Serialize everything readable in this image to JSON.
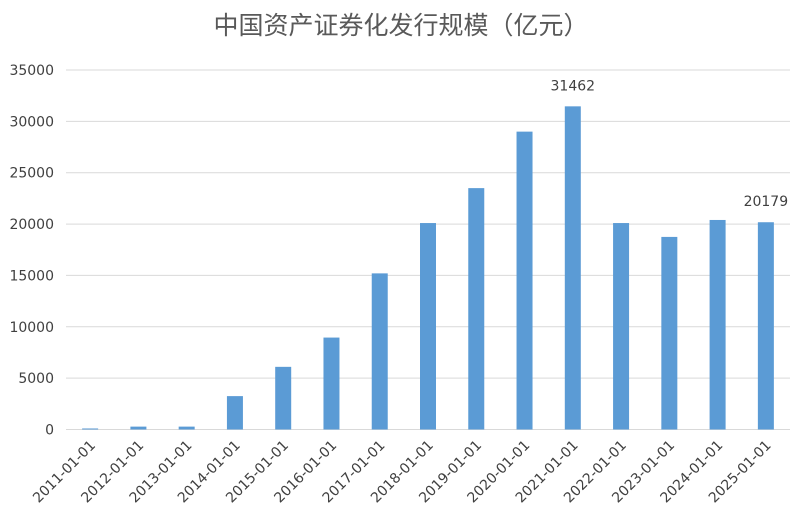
{
  "chart_data": {
    "type": "bar",
    "title": "中国资产证券化发行规模（亿元）",
    "xlabel": "",
    "ylabel": "",
    "categories": [
      "2011-01-01",
      "2012-01-01",
      "2013-01-01",
      "2014-01-01",
      "2015-01-01",
      "2016-01-01",
      "2017-01-01",
      "2018-01-01",
      "2019-01-01",
      "2020-01-01",
      "2021-01-01",
      "2022-01-01",
      "2023-01-01",
      "2024-01-01",
      "2025-01-01"
    ],
    "values": [
      100,
      280,
      280,
      3250,
      6100,
      8950,
      15200,
      20100,
      23500,
      29000,
      31462,
      20100,
      18750,
      20400,
      20179
    ],
    "data_labels": [
      {
        "index": 10,
        "text": "31462"
      },
      {
        "index": 14,
        "text": "20179"
      }
    ],
    "ylim": [
      0,
      35000
    ],
    "yticks": [
      0,
      5000,
      10000,
      15000,
      20000,
      25000,
      30000,
      35000
    ],
    "grid": true,
    "bar_color": "#5B9BD5",
    "grid_color": "#D9D9D9"
  }
}
